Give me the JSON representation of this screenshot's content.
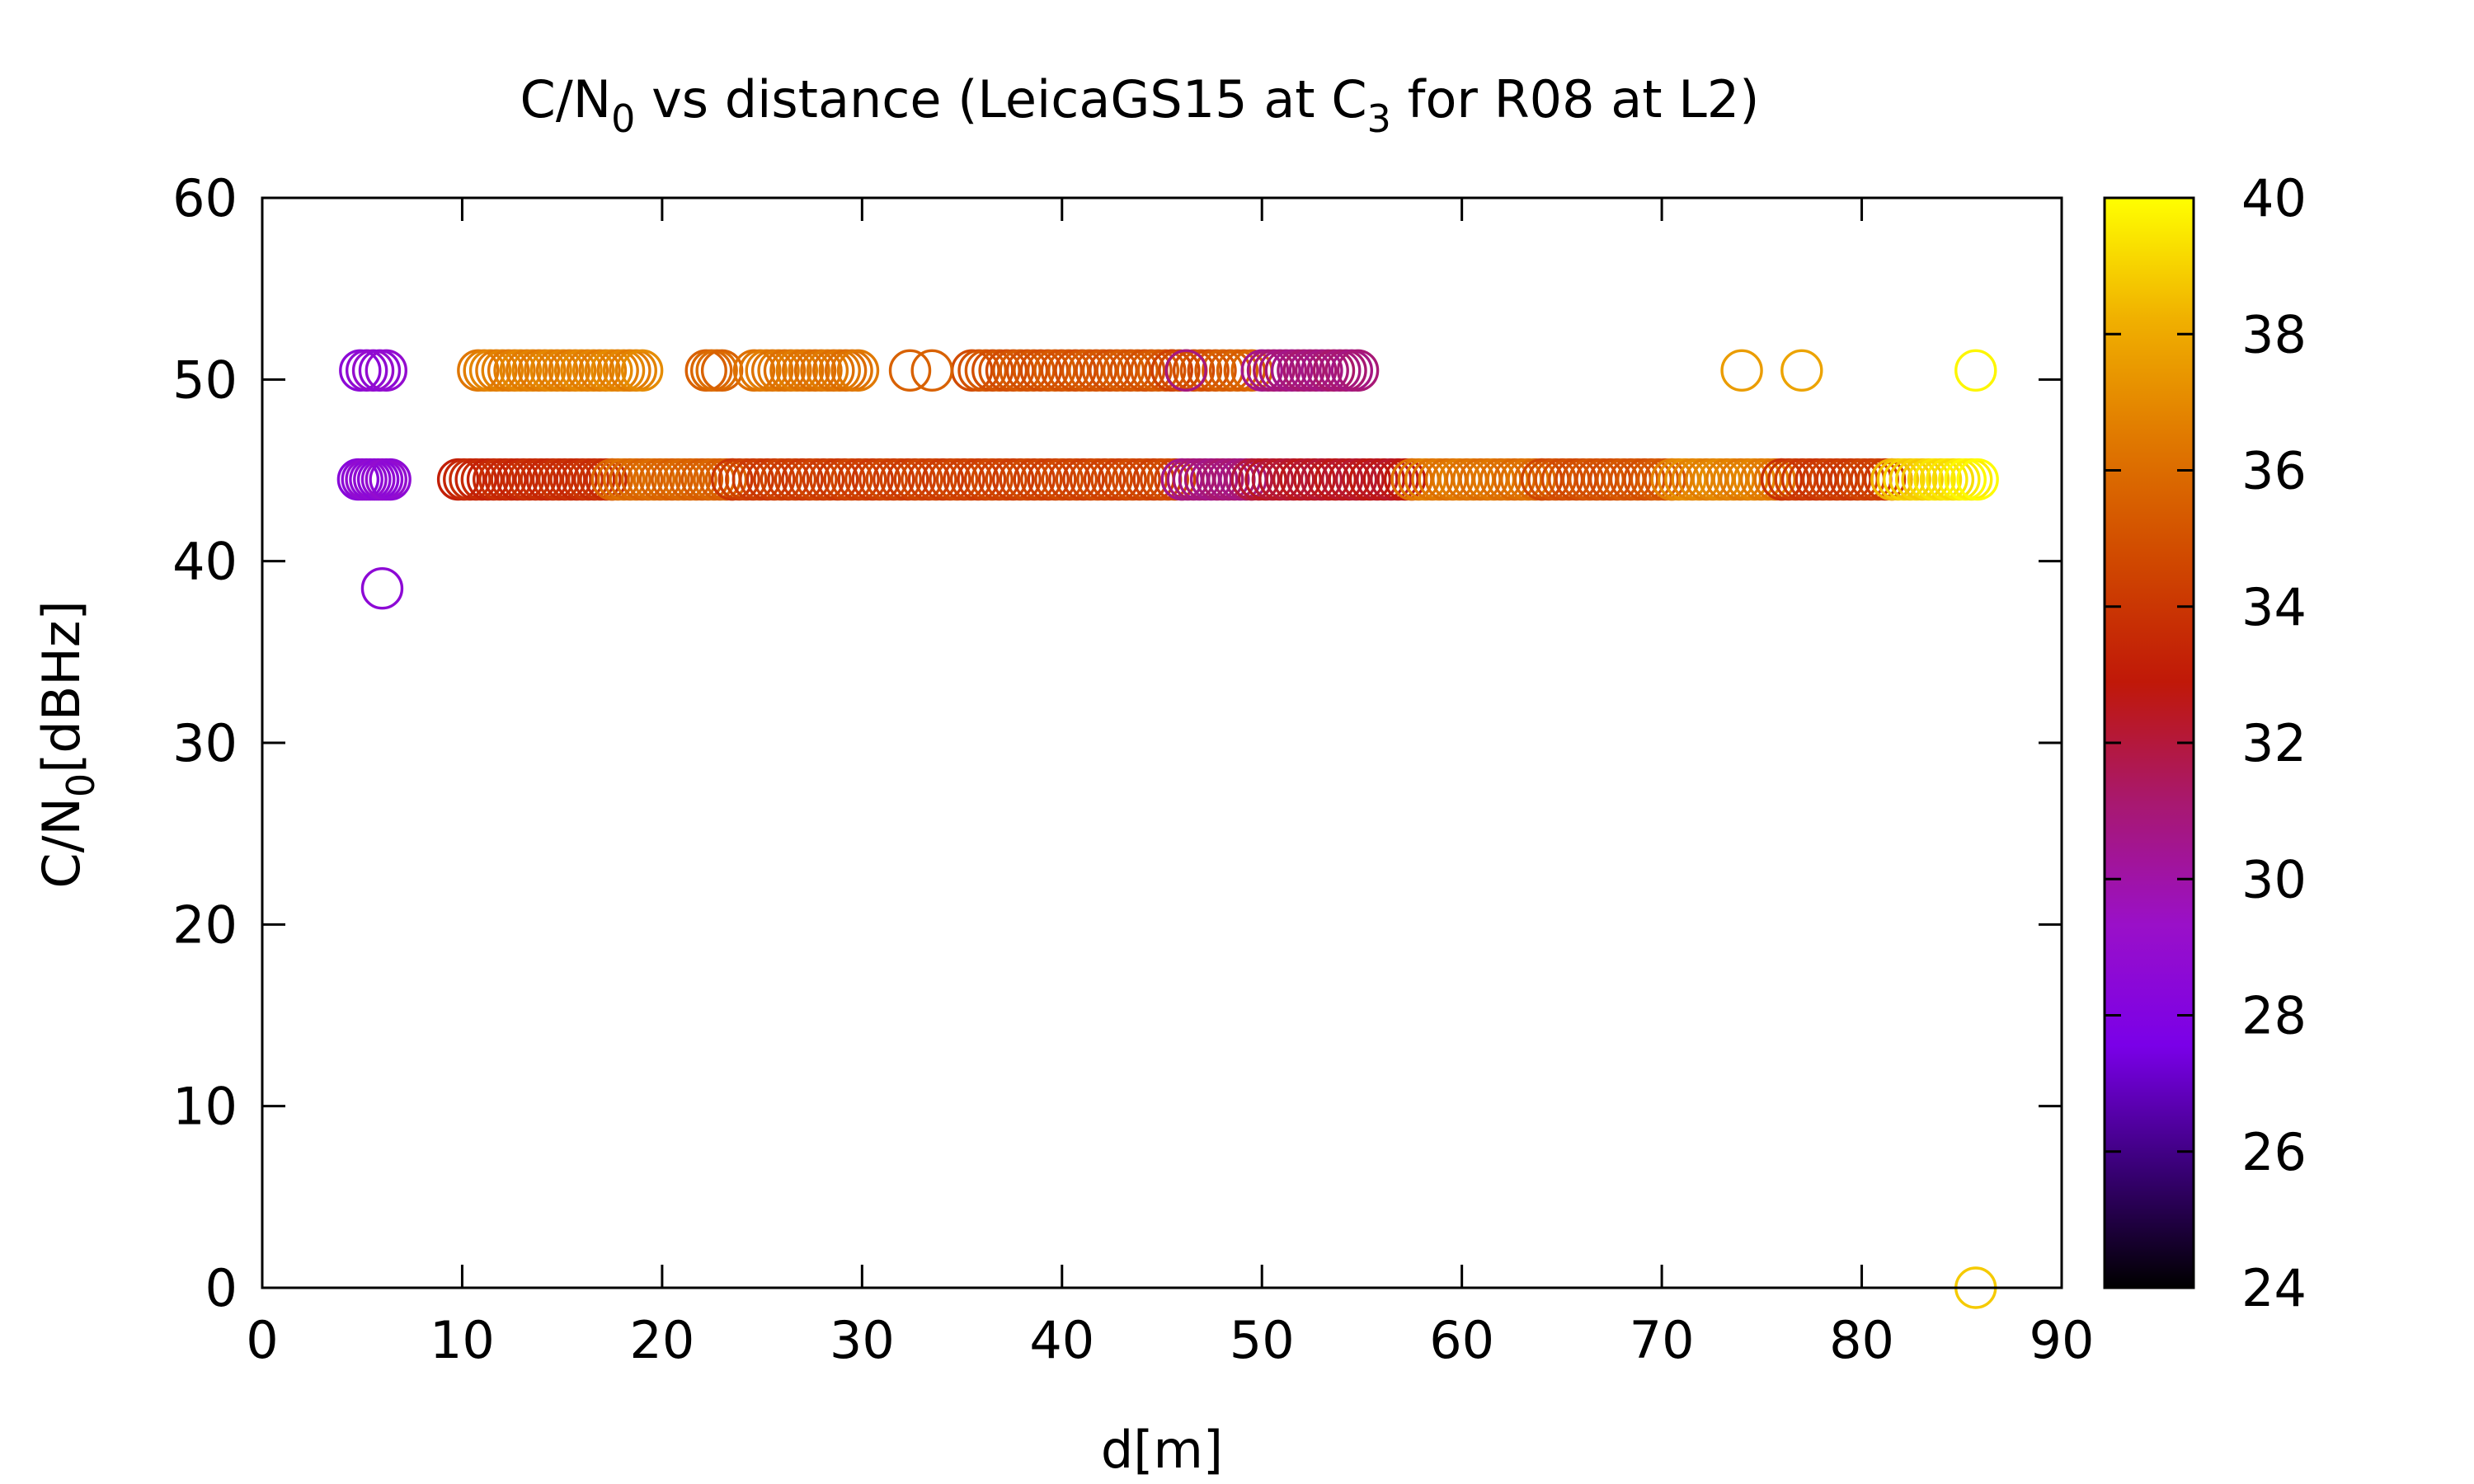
{
  "chart_data": {
    "type": "scatter",
    "title": {
      "prefix": "C/N",
      "prefix_sub": "0",
      "middle": " vs distance (LeicaGS15 at C",
      "middle_sub": "3",
      "suffix": " for R08 at L2)"
    },
    "xlabel": "d[m]",
    "ylabel": {
      "main": "C/N",
      "sub": "0",
      "unit": "[dBHz]"
    },
    "xlim": [
      0,
      90
    ],
    "ylim": [
      0,
      60
    ],
    "x_ticks": [
      "0",
      "10",
      "20",
      "30",
      "40",
      "50",
      "60",
      "70",
      "80",
      "90"
    ],
    "y_ticks": [
      "0",
      "10",
      "20",
      "30",
      "40",
      "50",
      "60"
    ],
    "colorbar": {
      "range": [
        24,
        40
      ],
      "ticks": [
        "24",
        "26",
        "28",
        "30",
        "32",
        "34",
        "36",
        "38",
        "40"
      ],
      "palette": [
        "#000000",
        "#3a0078",
        "#7a00e8",
        "#9a10c8",
        "#a81870",
        "#c01808",
        "#d04800",
        "#e07800",
        "#f0b000",
        "#ffff00"
      ]
    },
    "marker": "open-circle",
    "grid": false,
    "series": [
      {
        "segments": [
          {
            "y": 44.5,
            "x0": 4.8,
            "x1": 6.4,
            "step": 0.2,
            "c0": 28.6,
            "c1": 28.8
          },
          {
            "y": 44.5,
            "x0": 9.8,
            "x1": 17.5,
            "step": 0.3,
            "c0": 33.4,
            "c1": 33.8
          },
          {
            "y": 44.5,
            "x0": 17.5,
            "x1": 23.5,
            "step": 0.3,
            "c0": 36.0,
            "c1": 35.5
          },
          {
            "y": 44.5,
            "x0": 23.5,
            "x1": 46.0,
            "step": 0.35,
            "c0": 34.2,
            "c1": 34.6
          },
          {
            "y": 44.5,
            "x0": 46.0,
            "x1": 49.5,
            "step": 0.3,
            "c0": 30.8,
            "c1": 31.0
          },
          {
            "y": 44.5,
            "x0": 49.5,
            "x1": 57.5,
            "step": 0.35,
            "c0": 32.2,
            "c1": 32.6
          },
          {
            "y": 44.5,
            "x0": 57.5,
            "x1": 64.0,
            "step": 0.35,
            "c0": 36.5,
            "c1": 36.0
          },
          {
            "y": 44.5,
            "x0": 64.0,
            "x1": 70.5,
            "step": 0.35,
            "c0": 34.8,
            "c1": 35.2
          },
          {
            "y": 44.5,
            "x0": 70.5,
            "x1": 76.0,
            "step": 0.35,
            "c0": 37.0,
            "c1": 36.5
          },
          {
            "y": 44.5,
            "x0": 76.0,
            "x1": 81.5,
            "step": 0.35,
            "c0": 34.0,
            "c1": 34.4
          },
          {
            "y": 44.5,
            "x0": 81.5,
            "x1": 85.8,
            "step": 0.3,
            "c0": 38.6,
            "c1": 39.8
          },
          {
            "y": 50.5,
            "x0": 4.9,
            "x1": 6.2,
            "step": 0.3,
            "c0": 28.8,
            "c1": 28.8
          },
          {
            "y": 50.5,
            "x0": 10.8,
            "x1": 19.0,
            "step": 0.3,
            "c0": 36.6,
            "c1": 36.8
          },
          {
            "y": 50.5,
            "x0": 22.2,
            "x1": 23.0,
            "step": 0.25,
            "c0": 35.8,
            "c1": 35.8
          },
          {
            "y": 50.5,
            "x0": 24.6,
            "x1": 29.8,
            "step": 0.3,
            "c0": 36.4,
            "c1": 36.2
          },
          {
            "y": 50.5,
            "x0": 35.5,
            "x1": 45.5,
            "step": 0.35,
            "c0": 35.0,
            "c1": 35.2
          },
          {
            "y": 50.5,
            "x0": 45.5,
            "x1": 49.5,
            "step": 0.35,
            "c0": 34.6,
            "c1": 35.8
          },
          {
            "y": 50.5,
            "x0": 50.0,
            "x1": 54.8,
            "step": 0.3,
            "c0": 30.8,
            "c1": 31.0
          }
        ],
        "points": [
          {
            "x": 6.0,
            "y": 38.5,
            "c": 28.6
          },
          {
            "x": 32.4,
            "y": 50.5,
            "c": 35.6
          },
          {
            "x": 33.5,
            "y": 50.5,
            "c": 35.6
          },
          {
            "x": 46.2,
            "y": 50.5,
            "c": 30.8
          },
          {
            "x": 74.0,
            "y": 50.5,
            "c": 37.6
          },
          {
            "x": 77.0,
            "y": 50.5,
            "c": 37.8
          },
          {
            "x": 85.7,
            "y": 50.5,
            "c": 39.8
          },
          {
            "x": 85.7,
            "y": 0.0,
            "c": 38.8
          }
        ]
      }
    ]
  }
}
